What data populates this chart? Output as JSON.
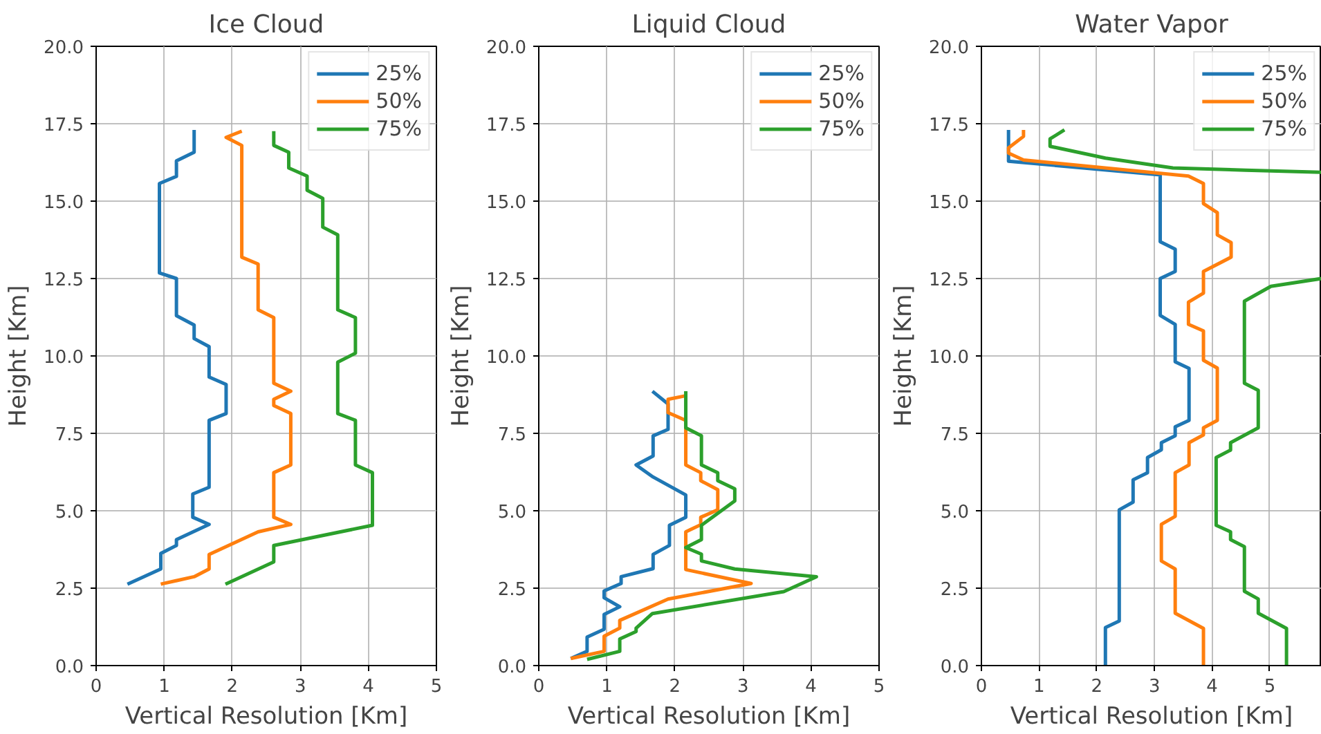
{
  "chart_data": [
    {
      "type": "line",
      "title": "Ice Cloud",
      "xlabel": "Vertical Resolution [Km]",
      "ylabel": "Height [Km]",
      "xlim": [
        0,
        5
      ],
      "ylim": [
        0,
        20
      ],
      "xticks": [
        0,
        1,
        2,
        3,
        4,
        5
      ],
      "yticks": [
        {
          "value": 0,
          "label": "0.0"
        },
        {
          "value": 2.5,
          "label": "2.5"
        },
        {
          "value": 5,
          "label": "5.0"
        },
        {
          "value": 7.5,
          "label": "7.5"
        },
        {
          "value": 10,
          "label": "10.0"
        },
        {
          "value": 12.5,
          "label": "12.5"
        },
        {
          "value": 15,
          "label": "15.0"
        },
        {
          "value": 17.5,
          "label": "17.5"
        },
        {
          "value": 20,
          "label": "20.0"
        }
      ],
      "grid": true,
      "legend": "top right",
      "line_style": "solid",
      "series": [
        {
          "name": "25%",
          "color": "#1f77b4",
          "x": [
            1.44,
            1.44,
            1.18,
            1.18,
            0.93,
            0.93,
            1.18,
            1.18,
            1.44,
            1.44,
            1.66,
            1.66,
            1.91,
            1.91,
            1.66,
            1.66,
            1.42,
            1.42,
            1.66,
            1.18,
            1.18,
            0.95,
            0.95,
            0.46
          ],
          "values": [
            17.3,
            16.58,
            16.3,
            15.8,
            15.57,
            12.68,
            12.5,
            11.3,
            11.0,
            10.56,
            10.3,
            9.32,
            9.08,
            8.14,
            7.92,
            5.76,
            5.54,
            4.79,
            4.56,
            4.07,
            3.88,
            3.62,
            3.12,
            2.63
          ]
        },
        {
          "name": "50%",
          "color": "#ff7f0e",
          "x": [
            2.14,
            1.91,
            2.14,
            2.14,
            2.38,
            2.38,
            2.61,
            2.61,
            2.86,
            2.61,
            2.61,
            2.86,
            2.86,
            2.61,
            2.61,
            2.86,
            2.38,
            1.66,
            1.66,
            1.44,
            0.95
          ],
          "values": [
            17.26,
            17.06,
            16.8,
            13.19,
            12.97,
            11.49,
            11.24,
            9.12,
            8.86,
            8.6,
            8.4,
            8.14,
            6.48,
            6.23,
            4.79,
            4.56,
            4.32,
            3.59,
            3.12,
            2.87,
            2.63
          ]
        },
        {
          "name": "75%",
          "color": "#2ca02c",
          "x": [
            2.61,
            2.61,
            2.83,
            2.83,
            3.1,
            3.1,
            3.33,
            3.33,
            3.55,
            3.55,
            3.81,
            3.81,
            3.55,
            3.55,
            3.81,
            3.81,
            4.06,
            4.06,
            2.61,
            2.61,
            1.9
          ],
          "values": [
            17.26,
            16.8,
            16.58,
            16.07,
            15.81,
            15.35,
            15.09,
            14.16,
            13.91,
            11.49,
            11.24,
            10.09,
            9.8,
            8.14,
            7.92,
            6.48,
            6.23,
            4.53,
            3.88,
            3.35,
            2.63
          ]
        }
      ]
    },
    {
      "type": "line",
      "title": "Liquid Cloud",
      "xlabel": "Vertical Resolution [Km]",
      "ylabel": "Height [Km]",
      "xlim": [
        0,
        5
      ],
      "ylim": [
        0,
        20
      ],
      "xticks": [
        0,
        1,
        2,
        3,
        4,
        5
      ],
      "yticks": [
        {
          "value": 0,
          "label": "0.0"
        },
        {
          "value": 2.5,
          "label": "2.5"
        },
        {
          "value": 5,
          "label": "5.0"
        },
        {
          "value": 7.5,
          "label": "7.5"
        },
        {
          "value": 10,
          "label": "10.0"
        },
        {
          "value": 12.5,
          "label": "12.5"
        },
        {
          "value": 15,
          "label": "15.0"
        },
        {
          "value": 17.5,
          "label": "17.5"
        },
        {
          "value": 20,
          "label": "20.0"
        }
      ],
      "grid": true,
      "legend": "top right",
      "line_style": "solid",
      "series": [
        {
          "name": "25%",
          "color": "#1f77b4",
          "x": [
            1.67,
            1.9,
            1.9,
            1.68,
            1.68,
            1.43,
            1.68,
            2.16,
            2.16,
            1.92,
            1.92,
            1.68,
            1.68,
            1.21,
            1.21,
            0.96,
            0.96,
            1.19,
            0.96,
            0.96,
            0.71,
            0.71,
            0.47
          ],
          "values": [
            8.86,
            8.45,
            7.63,
            7.42,
            6.77,
            6.48,
            6.09,
            5.51,
            4.79,
            4.53,
            3.88,
            3.59,
            3.13,
            2.87,
            2.65,
            2.41,
            2.19,
            1.9,
            1.65,
            1.17,
            0.92,
            0.46,
            0.23
          ]
        },
        {
          "name": "50%",
          "color": "#ff7f0e",
          "x": [
            2.17,
            1.9,
            1.9,
            2.16,
            2.16,
            2.38,
            2.38,
            2.63,
            2.63,
            2.38,
            2.38,
            2.16,
            2.16,
            3.12,
            1.9,
            1.19,
            1.19,
            0.96,
            0.96,
            0.47
          ],
          "values": [
            8.72,
            8.6,
            8.17,
            7.92,
            6.48,
            6.23,
            5.97,
            5.68,
            5.03,
            4.79,
            4.55,
            4.32,
            3.1,
            2.65,
            2.15,
            1.46,
            1.21,
            0.95,
            0.46,
            0.23
          ]
        },
        {
          "name": "75%",
          "color": "#2ca02c",
          "x": [
            2.16,
            2.16,
            2.39,
            2.39,
            2.63,
            2.63,
            2.88,
            2.88,
            2.39,
            2.39,
            2.16,
            2.39,
            2.39,
            2.88,
            4.08,
            3.6,
            1.67,
            1.43,
            1.43,
            1.19,
            1.19,
            0.71
          ],
          "values": [
            8.86,
            7.68,
            7.42,
            6.48,
            6.23,
            5.97,
            5.71,
            5.32,
            4.53,
            4.07,
            3.81,
            3.6,
            3.38,
            3.12,
            2.87,
            2.39,
            1.68,
            1.21,
            1.1,
            0.86,
            0.46,
            0.2
          ]
        }
      ]
    },
    {
      "type": "line",
      "title": "Water Vapor",
      "xlabel": "Vertical Resolution [Km]",
      "ylabel": "Height [Km]",
      "xlim": [
        0,
        5.9
      ],
      "ylim": [
        0,
        20
      ],
      "xticks": [
        0,
        1,
        2,
        3,
        4,
        5
      ],
      "yticks": [
        {
          "value": 0,
          "label": "0.0"
        },
        {
          "value": 2.5,
          "label": "2.5"
        },
        {
          "value": 5,
          "label": "5.0"
        },
        {
          "value": 7.5,
          "label": "7.5"
        },
        {
          "value": 10,
          "label": "10.0"
        },
        {
          "value": 12.5,
          "label": "12.5"
        },
        {
          "value": 15,
          "label": "15.0"
        },
        {
          "value": 17.5,
          "label": "17.5"
        },
        {
          "value": 20,
          "label": "20.0"
        }
      ],
      "grid": true,
      "legend": "top right",
      "line_style": "solid",
      "series": [
        {
          "name": "25%",
          "color": "#1f77b4",
          "x": [
            0.47,
            0.47,
            3.1,
            3.1,
            3.36,
            3.36,
            3.1,
            3.1,
            3.36,
            3.36,
            3.6,
            3.6,
            3.36,
            3.36,
            3.12,
            3.12,
            2.88,
            2.88,
            2.63,
            2.63,
            2.39,
            2.39,
            2.15,
            2.15
          ],
          "values": [
            17.3,
            16.29,
            15.85,
            13.69,
            13.45,
            12.73,
            12.5,
            11.31,
            11.02,
            9.81,
            9.6,
            7.92,
            7.71,
            7.42,
            7.2,
            6.97,
            6.72,
            6.23,
            6.0,
            5.28,
            5.03,
            1.44,
            1.23,
            0
          ]
        },
        {
          "name": "50%",
          "color": "#ff7f0e",
          "x": [
            0.73,
            0.73,
            0.47,
            0.47,
            0.73,
            3.59,
            3.85,
            3.85,
            4.09,
            4.09,
            4.33,
            4.33,
            3.85,
            3.85,
            3.59,
            3.59,
            3.85,
            3.85,
            4.09,
            4.09,
            3.85,
            3.85,
            3.6,
            3.6,
            3.36,
            3.36,
            3.12,
            3.12,
            3.36,
            3.36,
            3.85,
            3.85
          ],
          "values": [
            17.3,
            17.09,
            16.72,
            16.55,
            16.33,
            15.81,
            15.57,
            14.92,
            14.63,
            13.91,
            13.66,
            13.19,
            12.73,
            12.03,
            11.74,
            11.02,
            10.81,
            9.86,
            9.61,
            7.92,
            7.68,
            7.45,
            7.2,
            6.48,
            6.23,
            4.82,
            4.56,
            3.38,
            3.12,
            1.69,
            1.2,
            0
          ]
        },
        {
          "name": "75%",
          "color": "#2ca02c",
          "x": [
            1.44,
            1.19,
            1.19,
            2.15,
            3.32,
            4.58,
            5.9,
            null,
            5.9,
            5.02,
            4.56,
            4.56,
            4.8,
            4.8,
            4.32,
            4.32,
            4.07,
            4.07,
            4.32,
            4.32,
            4.56,
            4.56,
            4.8,
            4.8,
            5.29,
            5.29
          ],
          "values": [
            17.3,
            17.01,
            16.77,
            16.39,
            16.07,
            16.0,
            15.93,
            null,
            12.5,
            12.25,
            11.77,
            9.12,
            8.89,
            7.68,
            7.2,
            6.96,
            6.72,
            4.53,
            4.32,
            4.07,
            3.84,
            2.4,
            2.15,
            1.69,
            1.2,
            0
          ]
        }
      ]
    }
  ]
}
